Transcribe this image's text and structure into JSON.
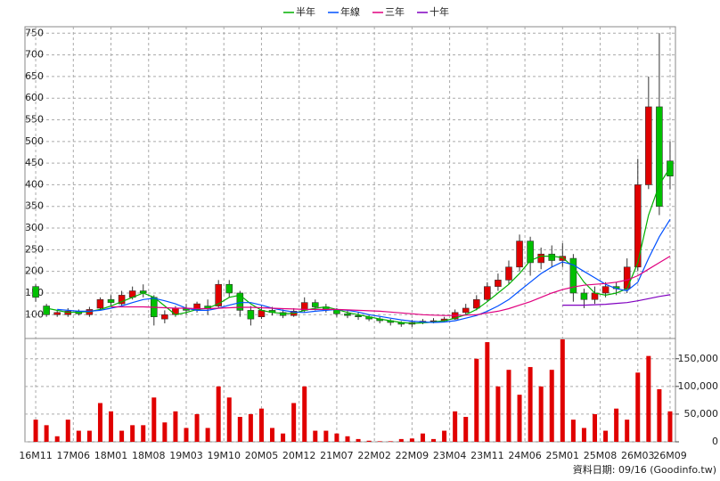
{
  "chart_data": [
    {
      "type": "candlestick",
      "up_color": "#e00000",
      "down_color": "#00c000",
      "x": [
        0,
        2,
        4,
        6,
        8,
        10,
        12,
        14,
        16,
        18,
        20,
        22,
        24,
        26,
        28,
        30,
        32,
        34,
        36,
        38,
        40,
        42,
        44,
        46,
        48,
        50,
        52,
        54,
        56,
        58,
        60,
        62,
        64,
        66,
        68,
        70,
        72,
        74,
        76,
        78,
        80,
        82,
        84,
        86,
        88,
        90,
        92,
        94,
        96,
        98,
        100,
        102,
        104,
        106,
        108,
        110,
        112,
        114,
        116,
        118
      ],
      "open": [
        165,
        120,
        100,
        100,
        108,
        100,
        115,
        135,
        125,
        140,
        155,
        140,
        90,
        100,
        115,
        110,
        120,
        120,
        170,
        150,
        110,
        95,
        110,
        105,
        98,
        110,
        128,
        118,
        112,
        102,
        98,
        95,
        90,
        86,
        82,
        78,
        82,
        85,
        86,
        90,
        105,
        115,
        135,
        165,
        180,
        210,
        270,
        220,
        240,
        225,
        230,
        150,
        135,
        150,
        165,
        160,
        210,
        400,
        580,
        455
      ],
      "high": [
        170,
        125,
        110,
        115,
        112,
        118,
        140,
        145,
        155,
        165,
        170,
        145,
        110,
        120,
        125,
        130,
        135,
        180,
        180,
        155,
        120,
        120,
        118,
        112,
        115,
        140,
        135,
        125,
        115,
        110,
        105,
        100,
        95,
        90,
        85,
        88,
        90,
        92,
        95,
        112,
        125,
        145,
        175,
        195,
        225,
        285,
        280,
        255,
        260,
        265,
        240,
        160,
        165,
        175,
        175,
        230,
        460,
        650,
        750,
        500
      ],
      "low": [
        130,
        95,
        95,
        95,
        98,
        95,
        110,
        120,
        120,
        135,
        140,
        75,
        80,
        95,
        100,
        105,
        100,
        115,
        140,
        95,
        75,
        90,
        98,
        92,
        95,
        105,
        110,
        105,
        95,
        92,
        88,
        85,
        80,
        75,
        72,
        72,
        78,
        80,
        82,
        88,
        100,
        110,
        130,
        155,
        170,
        200,
        190,
        205,
        210,
        210,
        130,
        115,
        125,
        140,
        145,
        150,
        200,
        390,
        330,
        390
      ],
      "close": [
        140,
        100,
        105,
        108,
        102,
        112,
        135,
        128,
        145,
        155,
        150,
        95,
        100,
        115,
        110,
        125,
        115,
        170,
        150,
        110,
        90,
        110,
        105,
        98,
        108,
        128,
        118,
        112,
        102,
        98,
        95,
        90,
        86,
        82,
        78,
        82,
        85,
        86,
        90,
        105,
        115,
        135,
        165,
        180,
        210,
        270,
        220,
        240,
        225,
        235,
        150,
        135,
        150,
        165,
        160,
        210,
        400,
        580,
        350,
        420
      ],
      "series": [
        {
          "name": "半年",
          "color": "#00b000",
          "values": [
            null,
            115,
            110,
            105,
            106,
            107,
            112,
            120,
            130,
            140,
            150,
            140,
            120,
            100,
            105,
            112,
            115,
            125,
            140,
            145,
            125,
            110,
            105,
            103,
            103,
            110,
            115,
            118,
            112,
            105,
            100,
            95,
            90,
            86,
            82,
            80,
            81,
            83,
            86,
            92,
            100,
            112,
            130,
            150,
            170,
            195,
            225,
            235,
            235,
            232,
            210,
            175,
            150,
            145,
            150,
            160,
            220,
            330,
            400,
            440
          ]
        },
        {
          "name": "年線",
          "color": "#0050ff",
          "values": [
            null,
            null,
            112,
            110,
            108,
            108,
            110,
            115,
            120,
            128,
            135,
            138,
            132,
            125,
            115,
            110,
            110,
            115,
            122,
            128,
            128,
            122,
            115,
            110,
            106,
            105,
            108,
            110,
            112,
            110,
            106,
            100,
            96,
            92,
            88,
            85,
            83,
            82,
            83,
            86,
            92,
            98,
            108,
            120,
            135,
            155,
            175,
            195,
            210,
            222,
            215,
            200,
            185,
            170,
            160,
            155,
            175,
            230,
            280,
            320
          ]
        },
        {
          "name": "三年",
          "color": "#e0007f",
          "values": [
            null,
            null,
            null,
            null,
            null,
            null,
            null,
            118,
            118,
            118,
            118,
            117,
            116,
            115,
            115,
            114,
            114,
            115,
            116,
            117,
            117,
            116,
            115,
            114,
            113,
            112,
            112,
            112,
            112,
            111,
            110,
            109,
            108,
            106,
            104,
            102,
            100,
            99,
            98,
            98,
            99,
            100,
            104,
            108,
            114,
            122,
            130,
            140,
            150,
            158,
            164,
            168,
            170,
            172,
            175,
            180,
            190,
            205,
            220,
            235
          ]
        },
        {
          "name": "十年",
          "color": "#8000c0",
          "values": [
            null,
            null,
            null,
            null,
            null,
            null,
            null,
            null,
            null,
            null,
            null,
            null,
            null,
            null,
            null,
            null,
            null,
            null,
            null,
            null,
            null,
            null,
            null,
            null,
            null,
            null,
            null,
            null,
            null,
            null,
            null,
            null,
            null,
            null,
            null,
            null,
            null,
            null,
            null,
            null,
            null,
            null,
            null,
            null,
            null,
            null,
            null,
            null,
            null,
            122,
            122,
            122,
            123,
            124,
            126,
            128,
            132,
            137,
            142,
            146
          ]
        }
      ],
      "xlim": [
        -2,
        119
      ],
      "xticks": [
        {
          "value": 0,
          "label": "16M11"
        },
        {
          "value": 7,
          "label": "17M06"
        },
        {
          "value": 14,
          "label": "18M01"
        },
        {
          "value": 21,
          "label": "18M08"
        },
        {
          "value": 28,
          "label": "19M03"
        },
        {
          "value": 35,
          "label": "19M10"
        },
        {
          "value": 42,
          "label": "20M05"
        },
        {
          "value": 49,
          "label": "20M12"
        },
        {
          "value": 56,
          "label": "21M07"
        },
        {
          "value": 63,
          "label": "22M02"
        },
        {
          "value": 70,
          "label": "22M09"
        },
        {
          "value": 77,
          "label": "23M04"
        },
        {
          "value": 84,
          "label": "23M11"
        },
        {
          "value": 91,
          "label": "24M06"
        },
        {
          "value": 98,
          "label": "25M01"
        },
        {
          "value": 105,
          "label": "25M08"
        },
        {
          "value": 112,
          "label": "26M03"
        },
        {
          "value": 118,
          "label": "26M09"
        }
      ],
      "ylim": [
        45,
        765
      ],
      "yticks": [
        100,
        150,
        200,
        250,
        300,
        350,
        400,
        450,
        500,
        550,
        600,
        650,
        700,
        750
      ],
      "grid": true
    },
    {
      "type": "bar",
      "color": "#e00000",
      "x": [
        0,
        2,
        4,
        6,
        8,
        10,
        12,
        14,
        16,
        18,
        20,
        22,
        24,
        26,
        28,
        30,
        32,
        34,
        36,
        38,
        40,
        42,
        44,
        46,
        48,
        50,
        52,
        54,
        56,
        58,
        60,
        62,
        64,
        66,
        68,
        70,
        72,
        74,
        76,
        78,
        80,
        82,
        84,
        86,
        88,
        90,
        92,
        94,
        96,
        98,
        100,
        102,
        104,
        106,
        108,
        110,
        112,
        114,
        116,
        118
      ],
      "values": [
        40000,
        30000,
        10000,
        40000,
        20000,
        20000,
        70000,
        55000,
        20000,
        30000,
        30000,
        80000,
        35000,
        55000,
        25000,
        50000,
        25000,
        100000,
        80000,
        45000,
        50000,
        60000,
        25000,
        15000,
        70000,
        100000,
        20000,
        20000,
        15000,
        10000,
        5000,
        2000,
        1000,
        1000,
        5000,
        6000,
        15000,
        5000,
        20000,
        55000,
        45000,
        150000,
        180000,
        100000,
        130000,
        85000,
        135000,
        100000,
        130000,
        185000,
        40000,
        25000,
        50000,
        20000,
        60000,
        40000,
        125000,
        155000,
        95000,
        55000
      ],
      "y2lim": [
        0,
        185000
      ],
      "y2ticks": [
        0,
        {
          "value": 50000,
          "label": "50,000"
        },
        {
          "value": 100000,
          "label": "100,000"
        },
        {
          "value": 150000,
          "label": "150,000"
        }
      ],
      "grid": true
    }
  ],
  "footer": "資料日期: 09/16 (Goodinfo.tw)"
}
